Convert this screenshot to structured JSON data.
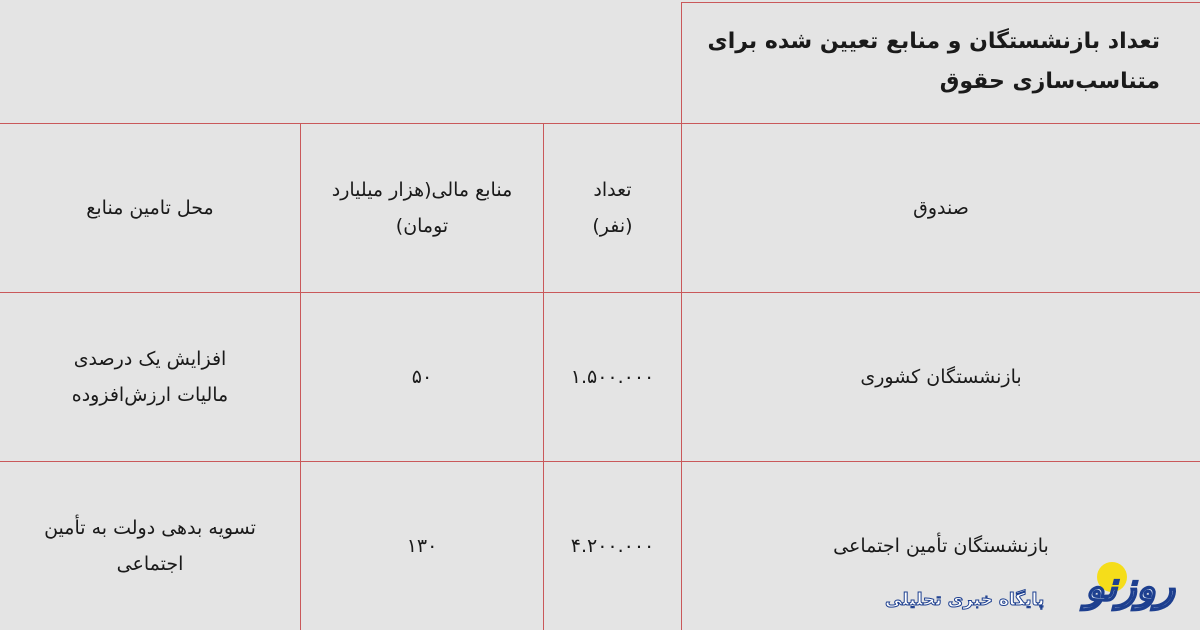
{
  "title": "تعداد بازنشستگان و منابع تعیین شده برای متناسب‌سازی حقوق",
  "headers": {
    "fund": "صندوق",
    "count": "تعداد (نفر)",
    "resources": "منابع مالی(هزار میلیارد تومان)",
    "source": "محل تامین منابع"
  },
  "rows": [
    {
      "fund": "بازنشستگان کشوری",
      "count": "۱.۵۰۰.۰۰۰",
      "resources": "۵۰",
      "source": "افزایش یک درصدی مالیات ارزش‌افزوده"
    },
    {
      "fund": "بازنشستگان تأمین اجتماعی",
      "count": "۴.۲۰۰.۰۰۰",
      "resources": "۱۳۰",
      "source": "تسویه بدهی دولت به تأمین اجتماعی"
    }
  ],
  "logo": {
    "name": "روزنو",
    "tagline": "پایگاه خبری تحلیلی"
  },
  "colors": {
    "background": "#e4e4e4",
    "border": "#c9585a",
    "logo_blue": "#1d3f8f",
    "logo_sun": "#f5dd1a"
  }
}
